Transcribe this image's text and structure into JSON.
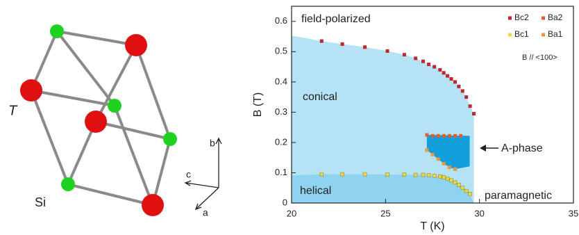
{
  "diagram": {
    "labels": {
      "site_T": "T",
      "site_Si": "Si",
      "axis_a": "a",
      "axis_b": "b",
      "axis_c": "c"
    }
  },
  "chart_data": {
    "type": "scatter",
    "xlabel": "T (K)",
    "ylabel": "B (T)",
    "xlim": [
      20,
      35
    ],
    "ylim": [
      0,
      0.65
    ],
    "xticks": [
      20,
      25,
      30,
      35
    ],
    "yticks": [
      0,
      0.1,
      0.2,
      0.3,
      0.4,
      0.5,
      0.6
    ],
    "annotations": {
      "field": "field-polarized",
      "conical": "conical",
      "helical": "helical",
      "para": "paramagnetic",
      "aphase": "A-phase",
      "orient": "B // <100>"
    },
    "series": [
      {
        "name": "Bc2",
        "color": "#c0272d",
        "x": [
          21.6,
          22.7,
          23.9,
          25.1,
          26.0,
          26.6,
          27.0,
          27.3,
          27.6,
          27.9,
          28.1,
          28.3,
          28.5,
          28.7,
          28.9,
          29.1,
          29.3,
          29.5,
          29.7
        ],
        "values": [
          0.535,
          0.525,
          0.515,
          0.502,
          0.49,
          0.478,
          0.468,
          0.458,
          0.45,
          0.44,
          0.43,
          0.42,
          0.41,
          0.4,
          0.385,
          0.37,
          0.35,
          0.32,
          0.295
        ]
      },
      {
        "name": "Ba2",
        "color": "#e0602a",
        "x": [
          27.2,
          27.5,
          27.8,
          28.1,
          28.4,
          28.7,
          29.0
        ],
        "values": [
          0.225,
          0.222,
          0.222,
          0.222,
          0.222,
          0.222,
          0.222
        ]
      },
      {
        "name": "Bc1",
        "color": "#e8d84a",
        "x": [
          21.6,
          22.7,
          23.9,
          25.1,
          26.0,
          26.6,
          27.0,
          27.3,
          27.6,
          27.9,
          28.1,
          28.3,
          28.5,
          28.7,
          28.9,
          29.1,
          29.3,
          29.5
        ],
        "values": [
          0.095,
          0.095,
          0.095,
          0.094,
          0.094,
          0.093,
          0.093,
          0.092,
          0.09,
          0.088,
          0.085,
          0.08,
          0.075,
          0.068,
          0.06,
          0.05,
          0.04,
          0.03
        ]
      },
      {
        "name": "Ba1",
        "color": "#e89a3a",
        "x": [
          27.2,
          27.5,
          27.8,
          28.1,
          28.4,
          28.7
        ],
        "values": [
          0.175,
          0.16,
          0.145,
          0.13,
          0.118,
          0.112
        ]
      }
    ]
  }
}
